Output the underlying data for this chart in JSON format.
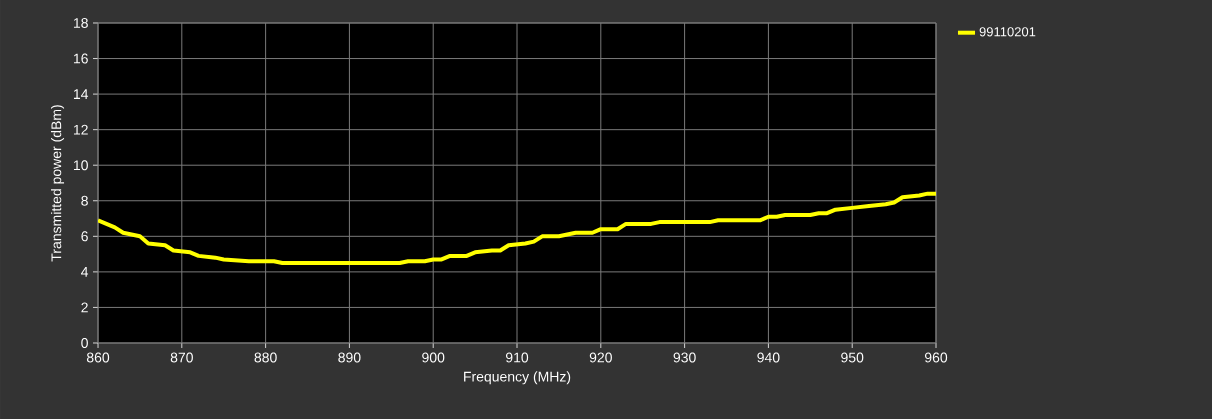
{
  "chart_data": {
    "type": "line",
    "xlabel": "Frequency (MHz)",
    "ylabel": "Transmitted power (dBm)",
    "xlim": [
      860,
      960
    ],
    "ylim": [
      0,
      18
    ],
    "xticks": [
      860,
      870,
      880,
      890,
      900,
      910,
      920,
      930,
      940,
      950,
      960
    ],
    "yticks": [
      0,
      2,
      4,
      6,
      8,
      10,
      12,
      14,
      16,
      18
    ],
    "grid": true,
    "legend": "top right",
    "marker": "none",
    "line_style": "solid",
    "series": [
      {
        "name": "99110201",
        "color": "#ffff00",
        "x": [
          860,
          861,
          862,
          863,
          865,
          866,
          868,
          869,
          871,
          872,
          874,
          875,
          878,
          881,
          882,
          890,
          896,
          897,
          899,
          900,
          901,
          902,
          904,
          905,
          907,
          908,
          909,
          911,
          912,
          913,
          915,
          917,
          919,
          920,
          922,
          923,
          926,
          927,
          933,
          934,
          939,
          940,
          941,
          942,
          945,
          946,
          947,
          948,
          950,
          952,
          954,
          955,
          956,
          958,
          959,
          960
        ],
        "values": [
          6.9,
          6.7,
          6.5,
          6.2,
          6.0,
          5.6,
          5.5,
          5.2,
          5.1,
          4.9,
          4.8,
          4.7,
          4.6,
          4.6,
          4.5,
          4.5,
          4.5,
          4.6,
          4.6,
          4.7,
          4.7,
          4.9,
          4.9,
          5.1,
          5.2,
          5.2,
          5.5,
          5.6,
          5.7,
          6.0,
          6.0,
          6.2,
          6.2,
          6.4,
          6.4,
          6.7,
          6.7,
          6.8,
          6.8,
          6.9,
          6.9,
          7.1,
          7.1,
          7.2,
          7.2,
          7.3,
          7.3,
          7.5,
          7.6,
          7.7,
          7.8,
          7.9,
          8.2,
          8.3,
          8.4,
          8.4
        ]
      }
    ]
  }
}
